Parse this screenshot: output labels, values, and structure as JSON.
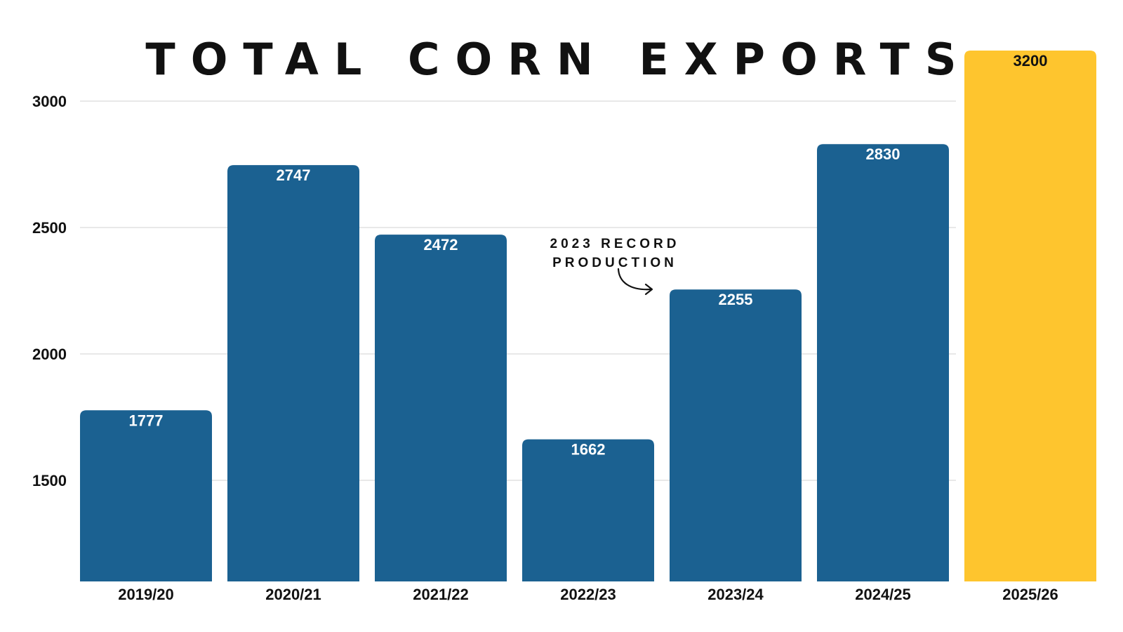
{
  "chart_data": {
    "type": "bar",
    "title": "TOTAL CORN EXPORTS",
    "xlabel": "",
    "ylabel": "",
    "categories": [
      "2019/20",
      "2020/21",
      "2021/22",
      "2022/23",
      "2023/24",
      "2024/25",
      "2025/26"
    ],
    "values": [
      1777,
      2747,
      2472,
      1662,
      2255,
      2830,
      3200
    ],
    "yticks": [
      1500,
      2000,
      2500,
      3000
    ],
    "ylim": [
      1100,
      3200
    ],
    "grid": true,
    "bar_colors": [
      "#1b6191",
      "#1b6191",
      "#1b6191",
      "#1b6191",
      "#1b6191",
      "#1b6191",
      "#fec52e"
    ],
    "value_label_colors": [
      "#ffffff",
      "#ffffff",
      "#ffffff",
      "#ffffff",
      "#ffffff",
      "#ffffff",
      "#111111"
    ],
    "annotation": {
      "lines": [
        "2023 RECORD",
        "PRODUCTION"
      ],
      "points_to": "2023/24"
    }
  }
}
